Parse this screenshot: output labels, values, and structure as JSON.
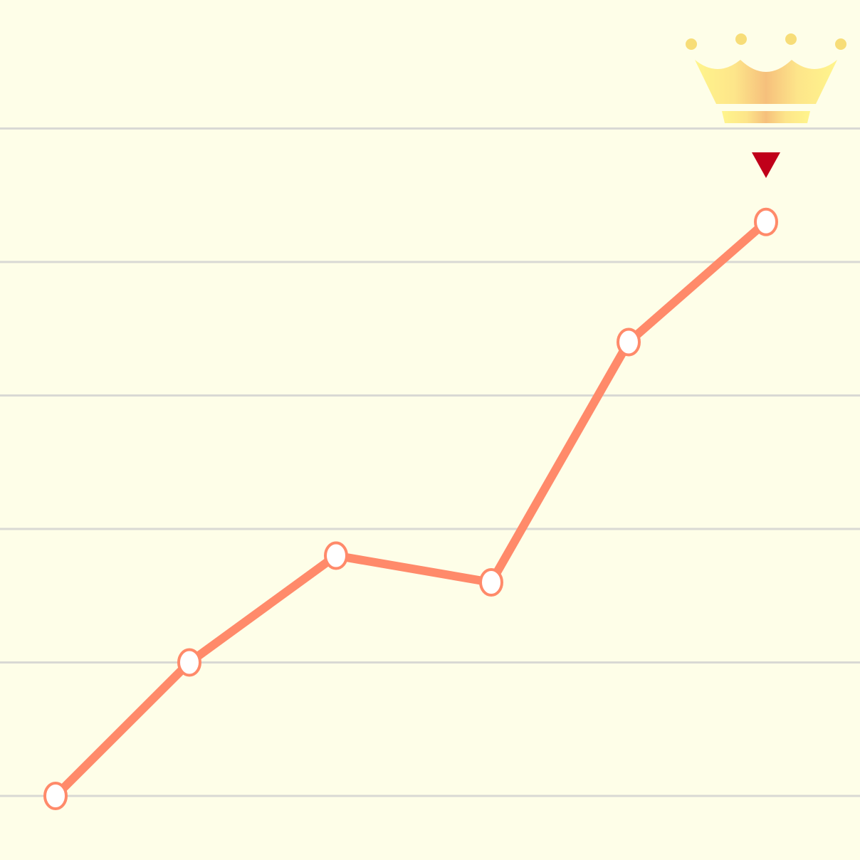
{
  "colors": {
    "background": "#FEFEE8",
    "grid": "#D9D9D4",
    "line": "#FF8A6A",
    "point_fill": "#FFFFFF",
    "point_stroke": "#FF8A6A",
    "marker": "#C0001A",
    "crown_light": "#FFF28A",
    "crown_dark": "#F7C27A",
    "crown_dot": "#F7DD78"
  },
  "icons": {
    "crown": "crown-icon",
    "marker": "down-triangle-icon"
  },
  "chart_data": {
    "type": "line",
    "title": "",
    "xlabel": "",
    "ylabel": "",
    "grid": true,
    "x": [
      1,
      2,
      3,
      4,
      5,
      6
    ],
    "series": [
      {
        "values": [
          0.0,
          1.0,
          1.8,
          1.6,
          3.4,
          4.3
        ]
      }
    ],
    "ylim": [
      0,
      5
    ],
    "xlim": [
      1,
      6
    ],
    "highlight_index": 5
  }
}
